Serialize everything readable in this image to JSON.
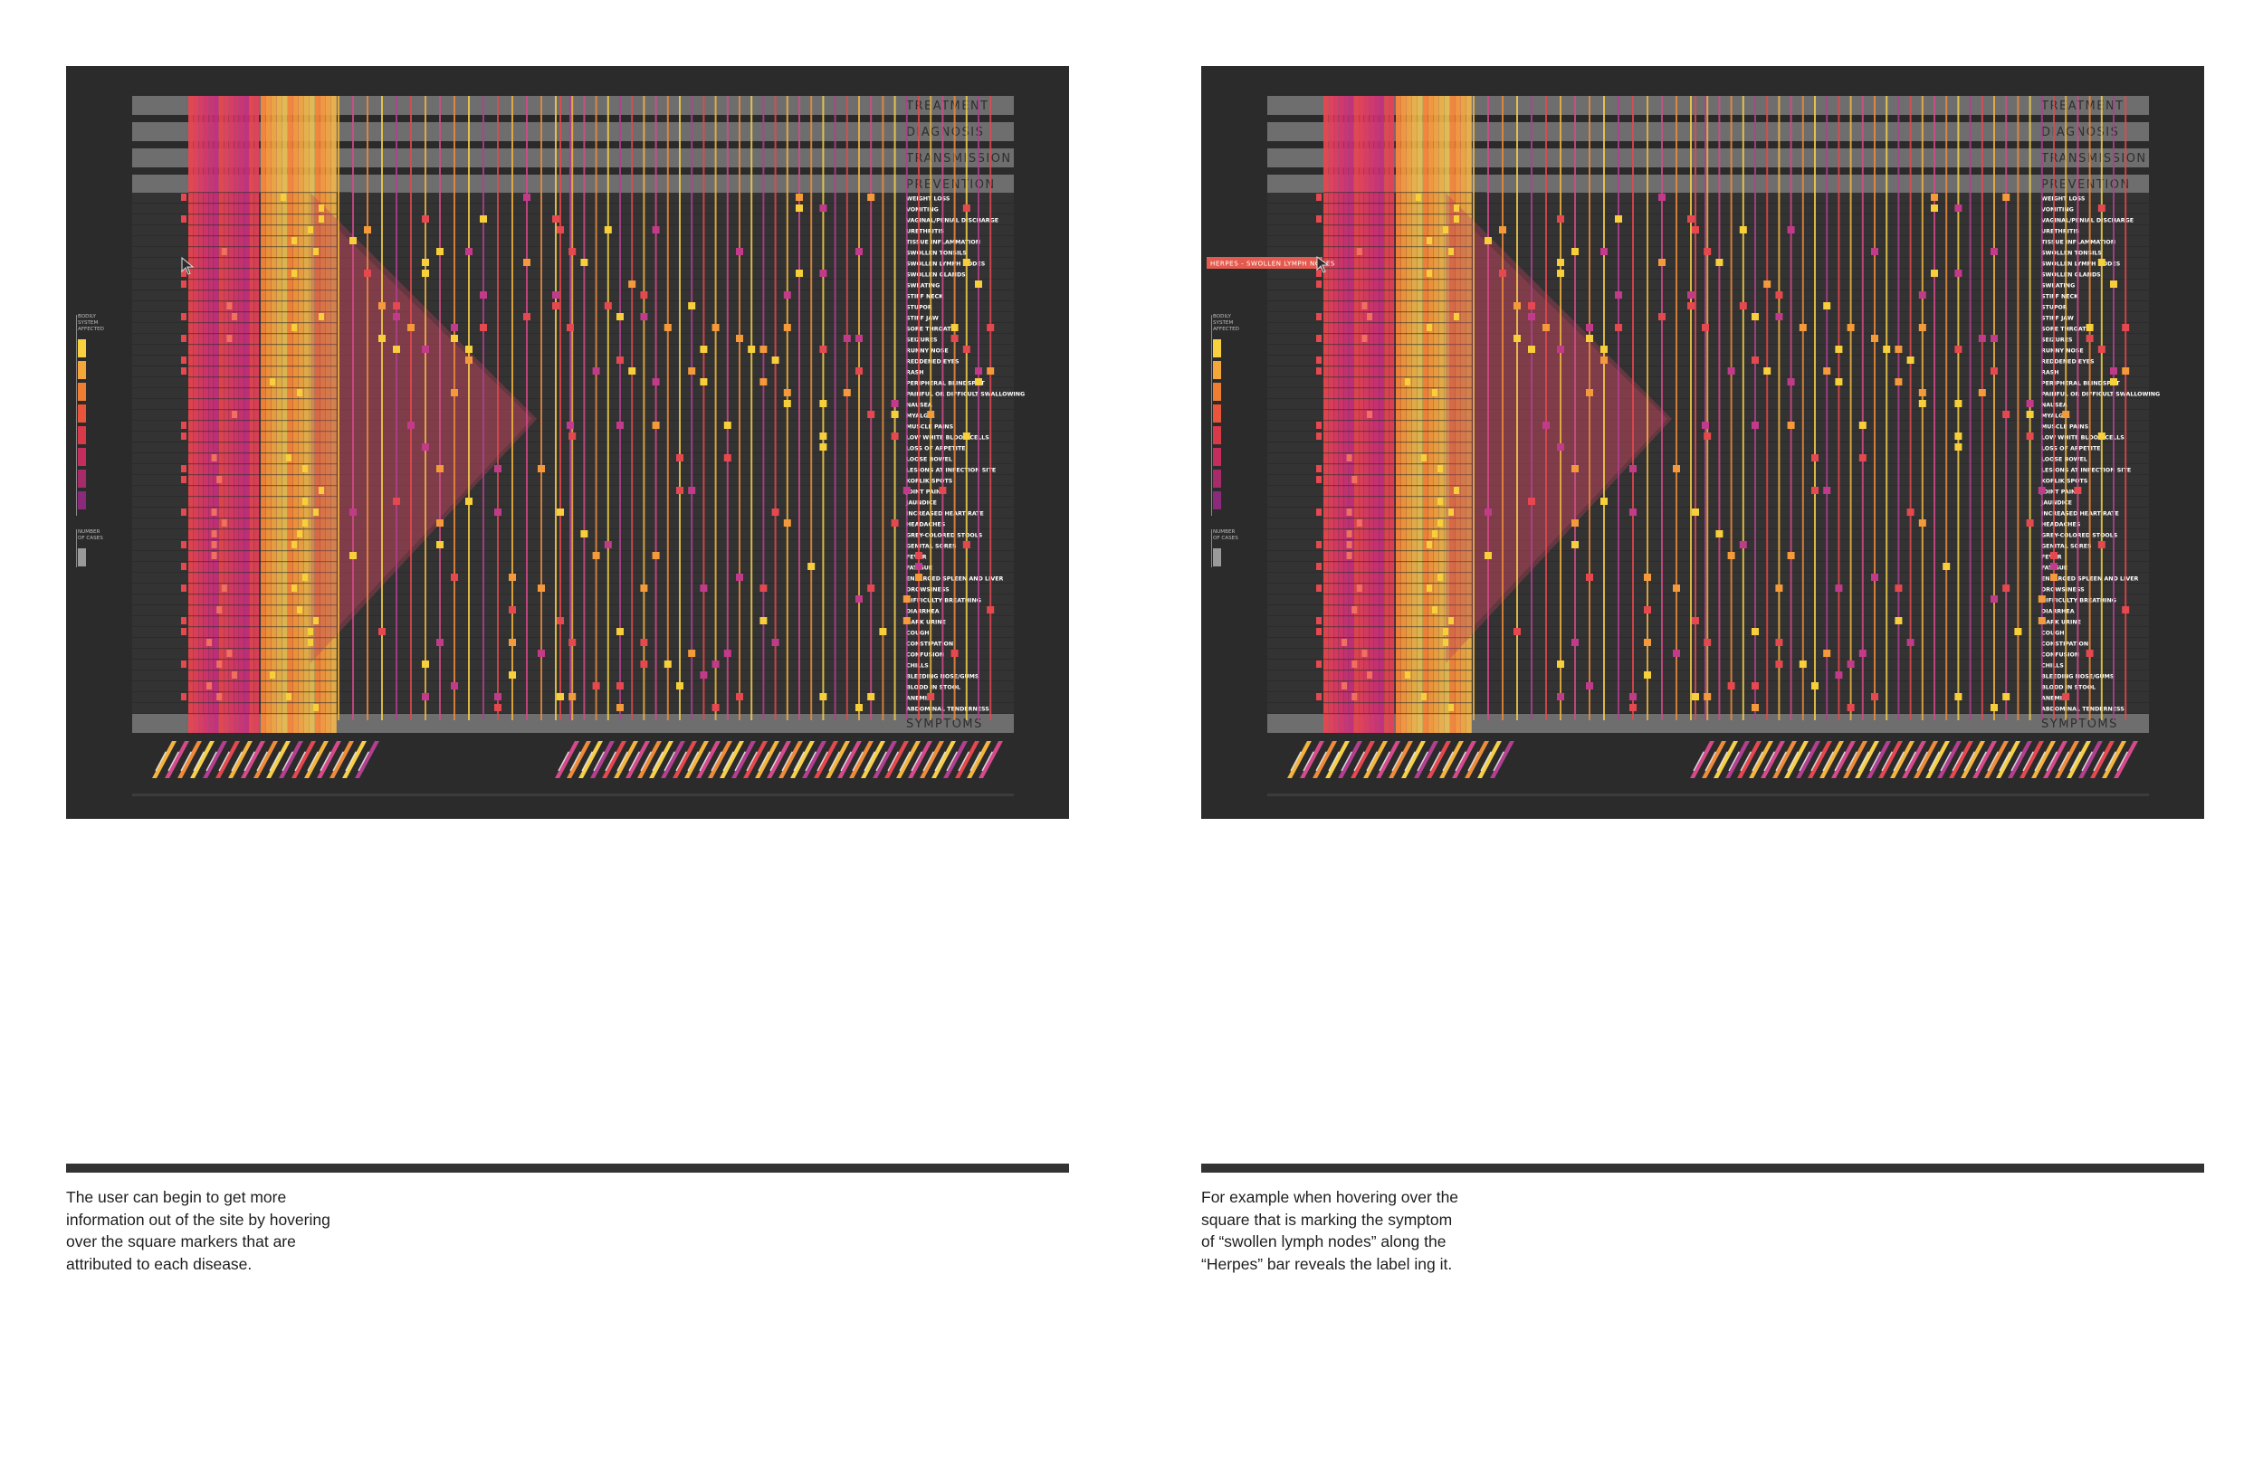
{
  "categories": [
    "TREATMENT",
    "DIAGNOSIS",
    "TRANSMISSION",
    "PREVENTION"
  ],
  "symptoms_header": "SYMPTOMS",
  "symptoms": [
    "WEIGHT LOSS",
    "VOMITING",
    "VAGINAL/PENIAL DISCHARGE",
    "URETHRITIS",
    "TISSUE INFLAMMATION",
    "SWOLLEN TONSILS",
    "SWOLLEN LYMPH NODES",
    "SWOLLEN GLANDS",
    "SWEATING",
    "STIFF NECK",
    "STUPOR",
    "STIFF JAW",
    "SORE THROAT",
    "SEIZURES",
    "RUNNY NOSE",
    "REDDENED EYES",
    "RASH",
    "PERIPHERAL BLINDSPOT",
    "PAINFUL OR DIFFICULT SWALLOWING",
    "NAUSEA",
    "MYALGIA",
    "MUSCLE PAINS",
    "LOW WHITE BLOOD CELLS",
    "LOSS OF APPETITE",
    "LOOSE BOWEL",
    "LESIONS AT INFECTION SITE",
    "KOPLIK SPOTS",
    "JOINT PAIN",
    "JAUNDICE",
    "INCREASED HEART RATE",
    "HEADACHES",
    "GREY-COLORED STOOLS",
    "GENITAL SORES",
    "FEVER",
    "FATIGUE",
    "ENLARGED SPLEEN AND LIVER",
    "DROWSINESS",
    "DIFFICULTY BREATHING",
    "DIARRHEA",
    "DARK URINE",
    "COUGH",
    "CONSTIPATION",
    "CONFUSION",
    "CHILLS",
    "BLEEDING NOSE/GUMS",
    "BLOOD IN STOOL",
    "ANEMIA",
    "ABDOMINAL TENDERNESS"
  ],
  "legend": {
    "system_label": [
      "BODILY",
      "SYSTEM",
      "AFFECTED"
    ],
    "cases_label": [
      "NUMBER",
      "OF CASES"
    ],
    "colors": [
      "#f7d23e",
      "#f5a63a",
      "#ef7d32",
      "#e8553a",
      "#d83a4a",
      "#c42e5c",
      "#a72a6a",
      "#8b2a7a"
    ]
  },
  "tooltip": {
    "text": "HERPES - SWOLLEN LYMPH NODES",
    "color": "#e55a4e"
  },
  "captions": {
    "left": [
      "The user can begin to get more",
      "information out of the site by hovering",
      "over the square markers that are",
      "attributed to each disease."
    ],
    "right": [
      "For example when hovering over the",
      "square that is marking the symptom",
      "of “swollen lymph nodes” along the",
      "“Herpes” bar reveals the label ing it."
    ]
  },
  "colors": {
    "panel_bg": "#2b2b2b",
    "band": "#6e6e6e",
    "band_text": "#2e2e2e",
    "reds": [
      "#e8464f",
      "#e53f5a",
      "#de3a63",
      "#d6356e",
      "#cf3276",
      "#c62f7e"
    ],
    "oranges": [
      "#ff8a3a",
      "#ff9b3d",
      "#f8a842",
      "#f3b74a",
      "#ecc253"
    ],
    "marker_yellow": "#f7cf3a",
    "marker_orange": "#f59a3a",
    "marker_magenta": "#c23a8a",
    "marker_red": "#e5484f"
  }
}
